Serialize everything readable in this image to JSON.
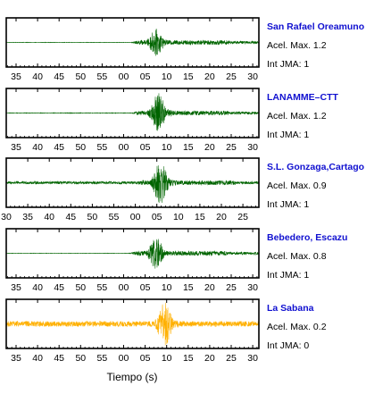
{
  "chart_data": {
    "type": "line",
    "xlabel": "Tiempo (s)",
    "grid": false,
    "stations": [
      {
        "name": "San Rafael Oreamuno",
        "accel_label": "Acel. Max. 1.2",
        "int_label": "Int JMA: 1",
        "color": "#006400",
        "start": 58,
        "main": 70,
        "amp": 0.6,
        "pre": 0.008,
        "dur": 24,
        "ticks": [
          "35",
          "40",
          "45",
          "50",
          "55",
          "00",
          "05",
          "10",
          "15",
          "20",
          "25",
          "30"
        ]
      },
      {
        "name": "LANAMME–CTT",
        "accel_label": "Acel. Max. 1.2",
        "int_label": "Int JMA: 1",
        "color": "#006400",
        "start": 58,
        "main": 71,
        "amp": 0.9,
        "pre": 0.012,
        "dur": 24,
        "ticks": [
          "35",
          "40",
          "45",
          "50",
          "55",
          "00",
          "05",
          "10",
          "15",
          "20",
          "25",
          "30"
        ]
      },
      {
        "name": "S.L. Gonzaga,Cartago",
        "accel_label": "Acel. Max. 0.9",
        "int_label": "Int JMA: 1",
        "color": "#006400",
        "start": 59,
        "main": 72,
        "amp": 0.95,
        "pre": 0.06,
        "dur": 26,
        "ticks": [
          "30",
          "35",
          "40",
          "45",
          "50",
          "55",
          "00",
          "05",
          "10",
          "15",
          "20",
          "25"
        ]
      },
      {
        "name": "Bebedero, Escazu",
        "accel_label": "Acel. Max. 0.8",
        "int_label": "Int JMA: 1",
        "color": "#006400",
        "start": 57,
        "main": 70,
        "amp": 0.72,
        "pre": 0.008,
        "dur": 24,
        "ticks": [
          "35",
          "40",
          "45",
          "50",
          "55",
          "00",
          "05",
          "10",
          "15",
          "20",
          "25",
          "30"
        ]
      },
      {
        "name": "La Sabana",
        "accel_label": "Acel. Max. 0.2",
        "int_label": "Int JMA: 0",
        "color": "#ffb000",
        "start": 56,
        "main": 74,
        "amp": 0.98,
        "pre": 0.12,
        "dur": 30,
        "ticks": [
          "35",
          "40",
          "45",
          "50",
          "55",
          "00",
          "05",
          "10",
          "15",
          "20",
          "25",
          "30"
        ]
      }
    ]
  }
}
